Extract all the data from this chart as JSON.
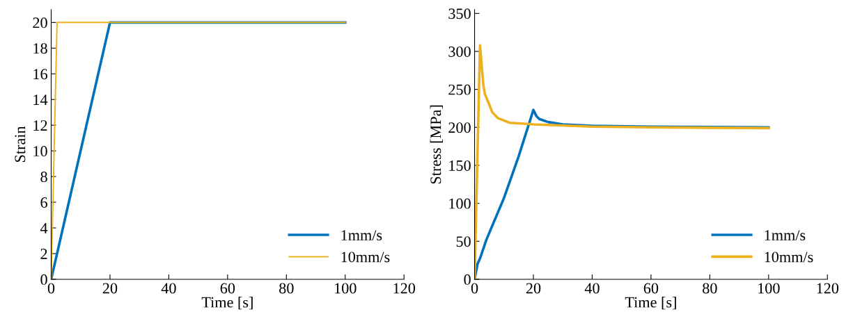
{
  "chart_data": [
    {
      "type": "line",
      "xlabel": "Time [s]",
      "ylabel": "Strain",
      "xlim": [
        0,
        120
      ],
      "xticks": [
        0,
        20,
        40,
        60,
        80,
        100,
        120
      ],
      "ylim": [
        0,
        21
      ],
      "yticks": [
        0,
        2,
        4,
        6,
        8,
        10,
        12,
        14,
        16,
        18,
        20
      ],
      "legend": "bottom right",
      "grid": false,
      "series": [
        {
          "name": "1mm/s",
          "color": "#0072bd",
          "x": [
            0,
            20,
            100
          ],
          "values": [
            0,
            20,
            20
          ]
        },
        {
          "name": "10mm/s",
          "color": "#edb120",
          "x": [
            0,
            2,
            100
          ],
          "values": [
            0,
            20,
            20
          ]
        }
      ]
    },
    {
      "type": "line",
      "xlabel": "Time [s]",
      "ylabel": "Stress [MPa]",
      "xlim": [
        0,
        120
      ],
      "xticks": [
        0,
        20,
        40,
        60,
        80,
        100,
        120
      ],
      "ylim": [
        0,
        355
      ],
      "yticks": [
        0,
        50,
        100,
        150,
        200,
        250,
        300,
        350
      ],
      "legend": "bottom right",
      "grid": false,
      "series": [
        {
          "name": "1mm/s",
          "color": "#0072bd",
          "x": [
            0,
            1,
            2,
            4,
            10,
            15,
            20,
            21,
            22,
            25,
            30,
            40,
            60,
            100
          ],
          "values": [
            0,
            20,
            29,
            52,
            107,
            162,
            223,
            215,
            211,
            207,
            204,
            202,
            201,
            200
          ]
        },
        {
          "name": "10mm/s",
          "color": "#edb120",
          "x": [
            0,
            1.85,
            3,
            3.5,
            5,
            6,
            8,
            12,
            20,
            40,
            60,
            100
          ],
          "values": [
            0,
            308,
            255,
            244,
            230,
            220,
            212,
            206,
            204,
            201,
            200,
            199
          ]
        }
      ]
    }
  ]
}
